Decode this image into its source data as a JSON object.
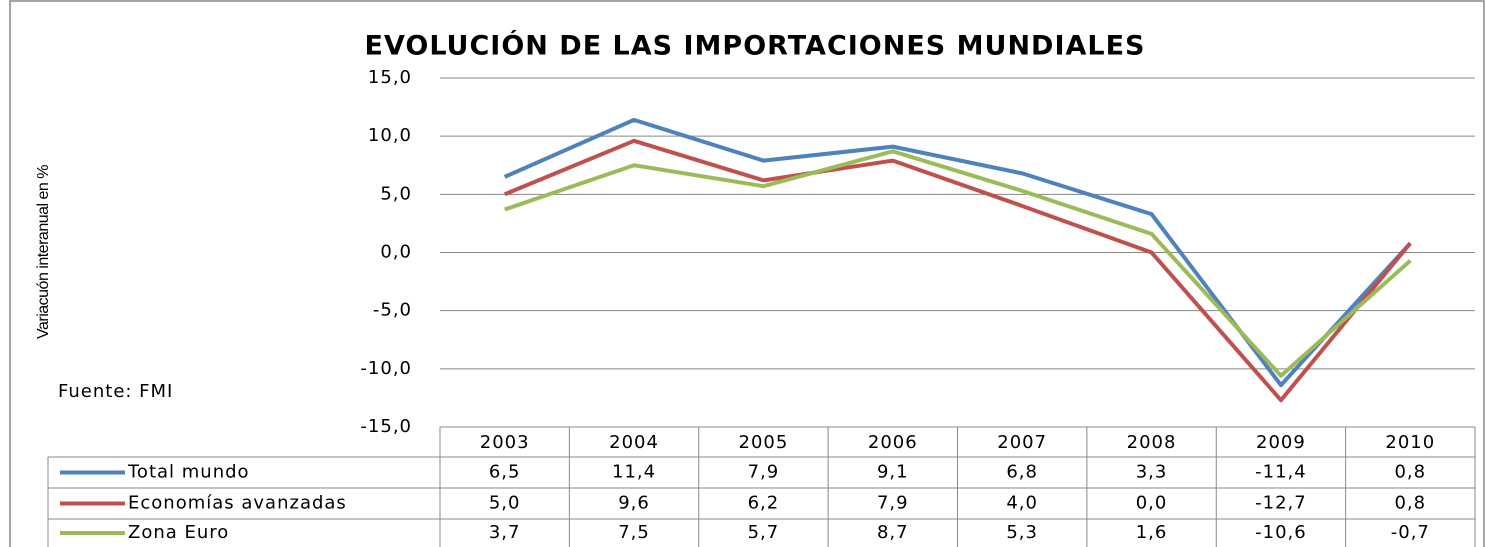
{
  "chart_data": {
    "type": "line",
    "title": "EVOLUCIÓN DE LAS IMPORTACIONES MUNDIALES",
    "y_label": "Variacuón interanual en %",
    "annotation": "Fuente: FMI",
    "categories": [
      "2003",
      "2004",
      "2005",
      "2006",
      "2007",
      "2008",
      "2009",
      "2010"
    ],
    "series": [
      {
        "name": "Total mundo",
        "color": "#4f81bd",
        "values": [
          6.5,
          11.4,
          7.9,
          9.1,
          6.8,
          3.3,
          -11.4,
          0.8
        ],
        "value_labels": [
          "6,5",
          "11,4",
          "7,9",
          "9,1",
          "6,8",
          "3,3",
          "-11,4",
          "0,8"
        ]
      },
      {
        "name": "Economías avanzadas",
        "color": "#c0504d",
        "values": [
          5.0,
          9.6,
          6.2,
          7.9,
          4.0,
          0.0,
          -12.7,
          0.8
        ],
        "value_labels": [
          "5,0",
          "9,6",
          "6,2",
          "7,9",
          "4,0",
          "0,0",
          "-12,7",
          "0,8"
        ]
      },
      {
        "name": "Zona Euro",
        "color": "#9bbb59",
        "values": [
          3.7,
          7.5,
          5.7,
          8.7,
          5.3,
          1.6,
          -10.6,
          -0.7
        ],
        "value_labels": [
          "3,7",
          "7,5",
          "5,7",
          "8,7",
          "5,3",
          "1,6",
          "-10,6",
          "-0,7"
        ]
      }
    ],
    "ylim": [
      -15,
      15
    ],
    "yticks": [
      {
        "value": -15,
        "label": "-15,0"
      },
      {
        "value": -10,
        "label": "-10,0"
      },
      {
        "value": -5,
        "label": "-5,0"
      },
      {
        "value": 0,
        "label": "0,0"
      },
      {
        "value": 5,
        "label": "5,0"
      },
      {
        "value": 10,
        "label": "10,0"
      },
      {
        "value": 15,
        "label": "15,0"
      }
    ],
    "grid": true
  }
}
